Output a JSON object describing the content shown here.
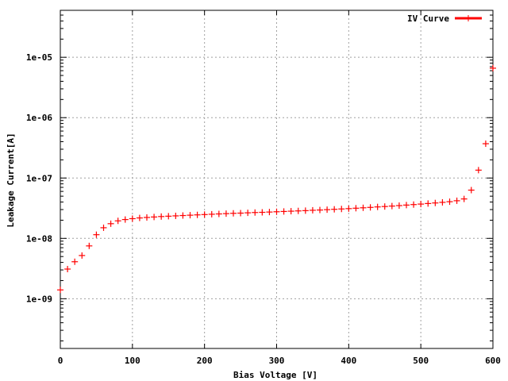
{
  "chart_data": {
    "type": "scatter",
    "xlabel": "Bias Voltage [V]",
    "ylabel": "Leakage Current[A]",
    "xlim": [
      0,
      600
    ],
    "ylim": [
      1.5e-10,
      6e-05
    ],
    "yscale": "log",
    "grid": true,
    "legend_position": "top-right",
    "xticks": [
      0,
      100,
      200,
      300,
      400,
      500,
      600
    ],
    "xtick_labels": [
      "0",
      "100",
      "200",
      "300",
      "400",
      "500",
      "600"
    ],
    "yticks": [
      1e-09,
      1e-08,
      1e-07,
      1e-06,
      1e-05
    ],
    "ytick_labels": [
      "1e-09",
      "1e-08",
      "1e-07",
      "1e-06",
      "1e-05"
    ],
    "series": [
      {
        "name": "IV Curve",
        "color": "#ff0000",
        "marker": "cross",
        "x": [
          0,
          10,
          20,
          30,
          40,
          50,
          60,
          70,
          80,
          90,
          100,
          110,
          120,
          130,
          140,
          150,
          160,
          170,
          180,
          190,
          200,
          210,
          220,
          230,
          240,
          250,
          260,
          270,
          280,
          290,
          300,
          310,
          320,
          330,
          340,
          350,
          360,
          370,
          380,
          390,
          400,
          410,
          420,
          430,
          440,
          450,
          460,
          470,
          480,
          490,
          500,
          510,
          520,
          530,
          540,
          550,
          560,
          570,
          580,
          590,
          600
        ],
        "y": [
          1.4e-09,
          3.1e-09,
          4.1e-09,
          5.2e-09,
          7.5e-09,
          1.15e-08,
          1.5e-08,
          1.75e-08,
          1.95e-08,
          2.05e-08,
          2.12e-08,
          2.18e-08,
          2.22e-08,
          2.26e-08,
          2.3e-08,
          2.33e-08,
          2.36e-08,
          2.39e-08,
          2.42e-08,
          2.45e-08,
          2.48e-08,
          2.51e-08,
          2.54e-08,
          2.57e-08,
          2.6e-08,
          2.62e-08,
          2.65e-08,
          2.68e-08,
          2.7e-08,
          2.73e-08,
          2.76e-08,
          2.79e-08,
          2.82e-08,
          2.85e-08,
          2.88e-08,
          2.92e-08,
          2.95e-08,
          2.99e-08,
          3.03e-08,
          3.07e-08,
          3.11e-08,
          3.16e-08,
          3.21e-08,
          3.26e-08,
          3.32e-08,
          3.37e-08,
          3.43e-08,
          3.49e-08,
          3.56e-08,
          3.63e-08,
          3.7e-08,
          3.78e-08,
          3.86e-08,
          3.95e-08,
          4.05e-08,
          4.2e-08,
          4.5e-08,
          6.3e-08,
          1.35e-07,
          3.7e-07,
          6.6e-06
        ]
      }
    ]
  }
}
